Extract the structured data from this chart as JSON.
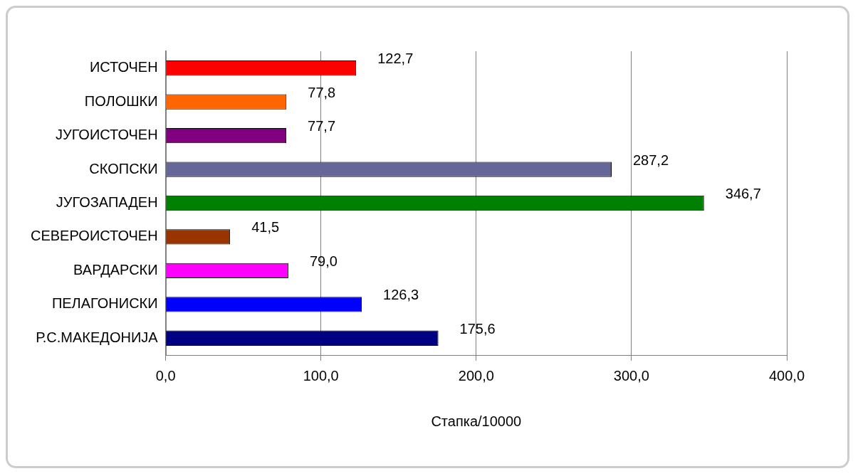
{
  "chart_data": {
    "type": "bar",
    "orientation": "horizontal",
    "xlabel": "Стапка/10000",
    "categories": [
      "ИСТОЧЕН",
      "ПОЛОШКИ",
      "ЈУГОИСТОЧЕН",
      "СКОПСКИ",
      "ЈУГОЗАПАДЕН",
      "СЕВЕРОИСТОЧЕН",
      "ВАРДАРСКИ",
      "ПЕЛАГОНИСКИ",
      "Р.С.МАКЕДОНИЈА"
    ],
    "values": [
      122.7,
      77.8,
      77.7,
      287.2,
      346.7,
      41.5,
      79.0,
      126.3,
      175.6
    ],
    "value_labels": [
      "122,7",
      "77,8",
      "77,7",
      "287,2",
      "346,7",
      "41,5",
      "79,0",
      "126,3",
      "175,6"
    ],
    "colors": [
      "#ff0000",
      "#ff6600",
      "#800080",
      "#666699",
      "#008000",
      "#993300",
      "#ff00ff",
      "#0000ff",
      "#000080"
    ],
    "xlim": [
      0,
      400
    ],
    "xticks": [
      {
        "value": 0,
        "label": "0,0"
      },
      {
        "value": 100,
        "label": "100,0"
      },
      {
        "value": 200,
        "label": "200,0"
      },
      {
        "value": 300,
        "label": "300,0"
      },
      {
        "value": 400,
        "label": "400,0"
      }
    ],
    "grid": "x",
    "legend": false
  }
}
